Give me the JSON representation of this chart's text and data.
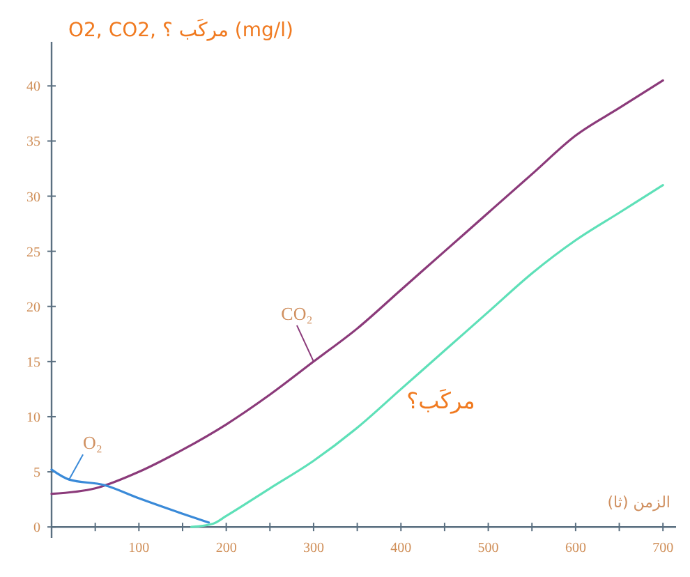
{
  "chart_data": {
    "type": "line",
    "ylabel": "O2, CO2, مركَب ؟  (mg/l)",
    "xlabel": "الزمن (ثا)",
    "xlim": [
      0,
      715
    ],
    "ylim": [
      -1,
      44
    ],
    "xticks": [
      {
        "value": 0,
        "label": null
      },
      {
        "value": 50,
        "label": null
      },
      100,
      {
        "value": 150,
        "label": null
      },
      200,
      {
        "value": 250,
        "label": null
      },
      300,
      {
        "value": 350,
        "label": null
      },
      400,
      {
        "value": 450,
        "label": null
      },
      500,
      {
        "value": 550,
        "label": null
      },
      600,
      {
        "value": 650,
        "label": null
      },
      700
    ],
    "yticks": [
      0,
      5,
      10,
      15,
      20,
      25,
      30,
      35,
      40
    ],
    "grid": false,
    "marker": "none",
    "line_style": "solid",
    "series": [
      {
        "name": "CO₂",
        "color": "#8b3a7a",
        "x": [
          0,
          50,
          100,
          150,
          200,
          250,
          300,
          350,
          400,
          450,
          500,
          550,
          600,
          650,
          700
        ],
        "values": [
          3,
          3.5,
          5,
          7,
          9.3,
          12,
          15,
          18,
          21.5,
          25,
          28.5,
          32,
          35.5,
          38,
          40.5
        ]
      },
      {
        "name": "O₂",
        "color": "#3a8ad8",
        "x": [
          0,
          20,
          60,
          100,
          150,
          180
        ],
        "values": [
          5.2,
          4.3,
          3.8,
          2.6,
          1.2,
          0.4
        ]
      },
      {
        "name": "مركَب؟",
        "color": "#5ee0b8",
        "x": [
          160,
          185,
          200,
          250,
          300,
          350,
          400,
          450,
          500,
          550,
          600,
          650,
          700
        ],
        "values": [
          0,
          0.3,
          1,
          3.5,
          6,
          9,
          12.5,
          16,
          19.5,
          23,
          26,
          28.5,
          31
        ]
      }
    ]
  }
}
